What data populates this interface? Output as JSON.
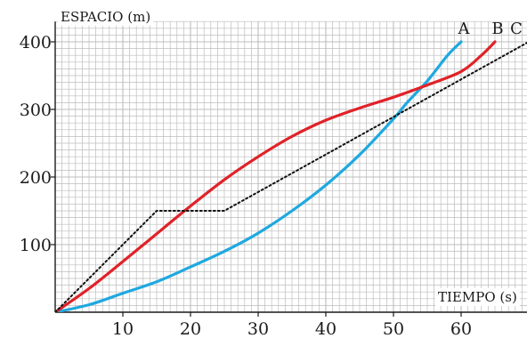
{
  "chart_data": {
    "type": "line",
    "title": "",
    "xlabel": "TIEMPO (s)",
    "ylabel": "ESPACIO (m)",
    "xlim": [
      0,
      70
    ],
    "ylim": [
      0,
      430
    ],
    "x_ticks": [
      10,
      20,
      30,
      40,
      50,
      60
    ],
    "x_tick_labels": [
      "10",
      "20",
      "30",
      "40",
      "50",
      "60"
    ],
    "y_ticks": [
      100,
      200,
      300,
      400
    ],
    "y_tick_labels": [
      "100",
      "200",
      "300",
      "400"
    ],
    "grid": true,
    "colors": {
      "A": "#1fa8e0",
      "B": "#e02228",
      "C": "#111111",
      "grid": "#bdbdbd",
      "axis": "#1a1a1a"
    },
    "series": [
      {
        "name": "A",
        "style": "solid",
        "points": [
          [
            0,
            0
          ],
          [
            5,
            11
          ],
          [
            10,
            28
          ],
          [
            15,
            45
          ],
          [
            20,
            67
          ],
          [
            25,
            90
          ],
          [
            30,
            117
          ],
          [
            35,
            150
          ],
          [
            40,
            188
          ],
          [
            45,
            233
          ],
          [
            50,
            286
          ],
          [
            52,
            310
          ],
          [
            55,
            342
          ],
          [
            58,
            380
          ],
          [
            60,
            400
          ]
        ]
      },
      {
        "name": "B",
        "style": "solid",
        "points": [
          [
            0,
            0
          ],
          [
            5,
            35
          ],
          [
            10,
            75
          ],
          [
            15,
            116
          ],
          [
            20,
            157
          ],
          [
            25,
            196
          ],
          [
            30,
            230
          ],
          [
            35,
            260
          ],
          [
            40,
            284
          ],
          [
            45,
            302
          ],
          [
            50,
            318
          ],
          [
            55,
            336
          ],
          [
            60,
            356
          ],
          [
            63,
            380
          ],
          [
            65,
            400
          ]
        ]
      },
      {
        "name": "C",
        "style": "dotted",
        "points": [
          [
            0,
            0
          ],
          [
            15,
            150
          ],
          [
            25,
            150
          ],
          [
            70,
            400
          ]
        ]
      }
    ]
  }
}
